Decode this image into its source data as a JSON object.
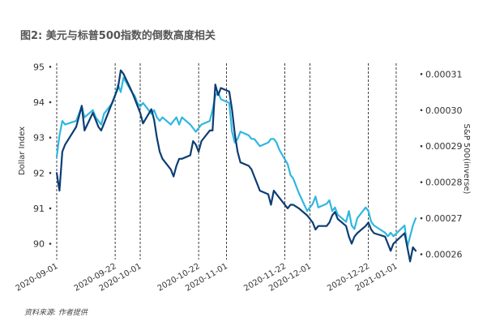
{
  "title": "图2: 美元与标普500指数的倒数高度相关",
  "source": "资料来源: 作者提供",
  "chart_data": {
    "type": "line",
    "ylabel_left": "Dollar Index",
    "ylabel_right": "S&P 500(inverse)",
    "ylim_left": [
      89.6,
      95.1
    ],
    "ylim_right": [
      0.000259,
      0.000313
    ],
    "yticks_left": [
      90,
      91,
      92,
      93,
      94,
      95
    ],
    "yticks_right": [
      0.00026,
      0.00027,
      0.00028,
      0.00029,
      0.0003,
      0.00031
    ],
    "ytick_labels_left": [
      "90",
      "91",
      "92",
      "93",
      "94",
      "95"
    ],
    "ytick_labels_right": [
      "0.00026",
      "0.00027",
      "0.00028",
      "0.00029",
      "0.00030",
      "0.00031"
    ],
    "xlim": [
      "2020-09-01",
      "2021-01-08"
    ],
    "x_ticks": [
      "2020-09-01",
      "2020-09-22",
      "2020-10-01",
      "2020-10-22",
      "2020-11-01",
      "2020-11-22",
      "2020-12-01",
      "2020-12-22",
      "2021-01-01"
    ],
    "x_tick_labels": [
      "2020-09-01",
      "2020-09-22",
      "2020-10-01",
      "2020-10-22",
      "2020-11-01",
      "2020-11-22",
      "2020-12-01",
      "2020-12-22",
      "2021-01-01"
    ],
    "vlines": [
      "2020-09-01",
      "2020-09-22",
      "2020-10-01",
      "2020-10-22",
      "2020-11-01",
      "2020-11-22",
      "2020-12-01",
      "2020-12-22",
      "2021-01-01"
    ],
    "grid": false,
    "series": [
      {
        "axis": "left",
        "color": "#0d3d73",
        "points": [
          [
            "2020-09-01",
            92.0
          ],
          [
            "2020-09-02",
            91.5
          ],
          [
            "2020-09-03",
            92.6
          ],
          [
            "2020-09-04",
            92.8
          ],
          [
            "2020-09-08",
            93.3
          ],
          [
            "2020-09-09",
            93.6
          ],
          [
            "2020-09-10",
            93.9
          ],
          [
            "2020-09-11",
            93.2
          ],
          [
            "2020-09-14",
            93.7
          ],
          [
            "2020-09-15",
            93.5
          ],
          [
            "2020-09-16",
            93.3
          ],
          [
            "2020-09-17",
            93.2
          ],
          [
            "2020-09-18",
            93.4
          ],
          [
            "2020-09-21",
            94.0
          ],
          [
            "2020-09-22",
            94.2
          ],
          [
            "2020-09-23",
            94.4
          ],
          [
            "2020-09-24",
            94.9
          ],
          [
            "2020-09-25",
            94.8
          ],
          [
            "2020-09-28",
            94.3
          ],
          [
            "2020-09-29",
            94.1
          ],
          [
            "2020-09-30",
            93.9
          ],
          [
            "2020-10-01",
            93.7
          ],
          [
            "2020-10-02",
            93.4
          ],
          [
            "2020-10-05",
            93.8
          ],
          [
            "2020-10-06",
            93.5
          ],
          [
            "2020-10-07",
            93.0
          ],
          [
            "2020-10-08",
            92.6
          ],
          [
            "2020-10-09",
            92.4
          ],
          [
            "2020-10-12",
            92.1
          ],
          [
            "2020-10-13",
            91.9
          ],
          [
            "2020-10-14",
            92.2
          ],
          [
            "2020-10-15",
            92.4
          ],
          [
            "2020-10-16",
            92.4
          ],
          [
            "2020-10-19",
            92.5
          ],
          [
            "2020-10-20",
            92.9
          ],
          [
            "2020-10-21",
            92.8
          ],
          [
            "2020-10-22",
            92.6
          ],
          [
            "2020-10-23",
            92.9
          ],
          [
            "2020-10-26",
            93.2
          ],
          [
            "2020-10-27",
            93.2
          ],
          [
            "2020-10-28",
            94.5
          ],
          [
            "2020-10-29",
            94.2
          ],
          [
            "2020-10-30",
            94.4
          ],
          [
            "2020-11-02",
            94.3
          ],
          [
            "2020-11-03",
            93.8
          ],
          [
            "2020-11-04",
            93.1
          ],
          [
            "2020-11-05",
            92.6
          ],
          [
            "2020-11-06",
            92.3
          ],
          [
            "2020-11-09",
            92.2
          ],
          [
            "2020-11-10",
            92.1
          ],
          [
            "2020-11-11",
            91.9
          ],
          [
            "2020-11-12",
            91.7
          ],
          [
            "2020-11-13",
            91.5
          ],
          [
            "2020-11-16",
            91.4
          ],
          [
            "2020-11-17",
            91.1
          ],
          [
            "2020-11-18",
            91.5
          ],
          [
            "2020-11-19",
            91.4
          ],
          [
            "2020-11-20",
            91.3
          ],
          [
            "2020-11-23",
            91.0
          ],
          [
            "2020-11-24",
            91.1
          ],
          [
            "2020-11-25",
            91.1
          ],
          [
            "2020-11-27",
            91.0
          ],
          [
            "2020-11-30",
            90.8
          ],
          [
            "2020-12-01",
            90.7
          ],
          [
            "2020-12-02",
            90.6
          ],
          [
            "2020-12-03",
            90.4
          ],
          [
            "2020-12-04",
            90.5
          ],
          [
            "2020-12-07",
            90.5
          ],
          [
            "2020-12-08",
            90.6
          ],
          [
            "2020-12-09",
            90.8
          ],
          [
            "2020-12-10",
            90.9
          ],
          [
            "2020-12-11",
            90.7
          ],
          [
            "2020-12-14",
            90.5
          ],
          [
            "2020-12-15",
            90.2
          ],
          [
            "2020-12-16",
            90.0
          ],
          [
            "2020-12-17",
            90.2
          ],
          [
            "2020-12-18",
            90.3
          ],
          [
            "2020-12-21",
            90.5
          ],
          [
            "2020-12-22",
            90.6
          ],
          [
            "2020-12-23",
            90.4
          ],
          [
            "2020-12-24",
            90.3
          ],
          [
            "2020-12-28",
            90.2
          ],
          [
            "2020-12-29",
            90.0
          ],
          [
            "2020-12-30",
            89.8
          ],
          [
            "2020-12-31",
            90.0
          ],
          [
            "2021-01-04",
            90.3
          ],
          [
            "2021-01-05",
            89.9
          ],
          [
            "2021-01-06",
            89.5
          ],
          [
            "2021-01-07",
            89.9
          ],
          [
            "2021-01-08",
            89.8
          ]
        ]
      },
      {
        "axis": "right",
        "color": "#31b7e0",
        "points": [
          [
            "2020-09-01",
            0.000287
          ],
          [
            "2020-09-02",
            0.000293
          ],
          [
            "2020-09-03",
            0.000297
          ],
          [
            "2020-09-04",
            0.000296
          ],
          [
            "2020-09-08",
            0.000297
          ],
          [
            "2020-09-09",
            0.000299
          ],
          [
            "2020-09-10",
            0.000301
          ],
          [
            "2020-09-11",
            0.000298
          ],
          [
            "2020-09-14",
            0.0003
          ],
          [
            "2020-09-15",
            0.000298
          ],
          [
            "2020-09-16",
            0.000297
          ],
          [
            "2020-09-17",
            0.000296
          ],
          [
            "2020-09-18",
            0.000299
          ],
          [
            "2020-09-21",
            0.000302
          ],
          [
            "2020-09-22",
            0.000304
          ],
          [
            "2020-09-23",
            0.000307
          ],
          [
            "2020-09-24",
            0.000305
          ],
          [
            "2020-09-25",
            0.000309
          ],
          [
            "2020-09-28",
            0.000305
          ],
          [
            "2020-09-29",
            0.000304
          ],
          [
            "2020-09-30",
            0.000302
          ],
          [
            "2020-10-01",
            0.000301
          ],
          [
            "2020-10-02",
            0.000302
          ],
          [
            "2020-10-05",
            0.000299
          ],
          [
            "2020-10-06",
            0.0003
          ],
          [
            "2020-10-07",
            0.000298
          ],
          [
            "2020-10-08",
            0.000297
          ],
          [
            "2020-10-09",
            0.000298
          ],
          [
            "2020-10-12",
            0.000296
          ],
          [
            "2020-10-13",
            0.000297
          ],
          [
            "2020-10-14",
            0.000298
          ],
          [
            "2020-10-15",
            0.000296
          ],
          [
            "2020-10-16",
            0.000298
          ],
          [
            "2020-10-19",
            0.000296
          ],
          [
            "2020-10-20",
            0.000295
          ],
          [
            "2020-10-21",
            0.000294
          ],
          [
            "2020-10-22",
            0.000295
          ],
          [
            "2020-10-23",
            0.000296
          ],
          [
            "2020-10-26",
            0.000297
          ],
          [
            "2020-10-27",
            0.0003
          ],
          [
            "2020-10-28",
            0.000304
          ],
          [
            "2020-10-29",
            0.000305
          ],
          [
            "2020-10-30",
            0.000303
          ],
          [
            "2020-11-02",
            0.000302
          ],
          [
            "2020-11-03",
            0.000294
          ],
          [
            "2020-11-04",
            0.000291
          ],
          [
            "2020-11-05",
            0.000292
          ],
          [
            "2020-11-06",
            0.000294
          ],
          [
            "2020-11-09",
            0.000293
          ],
          [
            "2020-11-10",
            0.000292
          ],
          [
            "2020-11-11",
            0.000292
          ],
          [
            "2020-11-12",
            0.000291
          ],
          [
            "2020-11-13",
            0.00029
          ],
          [
            "2020-11-16",
            0.000291
          ],
          [
            "2020-11-17",
            0.000292
          ],
          [
            "2020-11-18",
            0.000292
          ],
          [
            "2020-11-19",
            0.000291
          ],
          [
            "2020-11-20",
            0.000289
          ],
          [
            "2020-11-23",
            0.000285
          ],
          [
            "2020-11-24",
            0.000282
          ],
          [
            "2020-11-25",
            0.000281
          ],
          [
            "2020-11-27",
            0.000277
          ],
          [
            "2020-11-30",
            0.000272
          ],
          [
            "2020-12-01",
            0.000273
          ],
          [
            "2020-12-02",
            0.000274
          ],
          [
            "2020-12-03",
            0.000276
          ],
          [
            "2020-12-04",
            0.000273
          ],
          [
            "2020-12-07",
            0.000274
          ],
          [
            "2020-12-08",
            0.000275
          ],
          [
            "2020-12-09",
            0.000272
          ],
          [
            "2020-12-10",
            0.000273
          ],
          [
            "2020-12-11",
            0.000271
          ],
          [
            "2020-12-14",
            0.000269
          ],
          [
            "2020-12-15",
            0.000272
          ],
          [
            "2020-12-16",
            0.000268
          ],
          [
            "2020-12-17",
            0.000267
          ],
          [
            "2020-12-18",
            0.00027
          ],
          [
            "2020-12-21",
            0.000273
          ],
          [
            "2020-12-22",
            0.000272
          ],
          [
            "2020-12-23",
            0.000269
          ],
          [
            "2020-12-24",
            0.000268
          ],
          [
            "2020-12-28",
            0.000266
          ],
          [
            "2020-12-29",
            0.000265
          ],
          [
            "2020-12-30",
            0.000266
          ],
          [
            "2020-12-31",
            0.000265
          ],
          [
            "2021-01-04",
            0.000268
          ],
          [
            "2021-01-05",
            0.000262
          ],
          [
            "2021-01-06",
            0.000265
          ],
          [
            "2021-01-07",
            0.000268
          ],
          [
            "2021-01-08",
            0.00027
          ]
        ]
      }
    ]
  }
}
